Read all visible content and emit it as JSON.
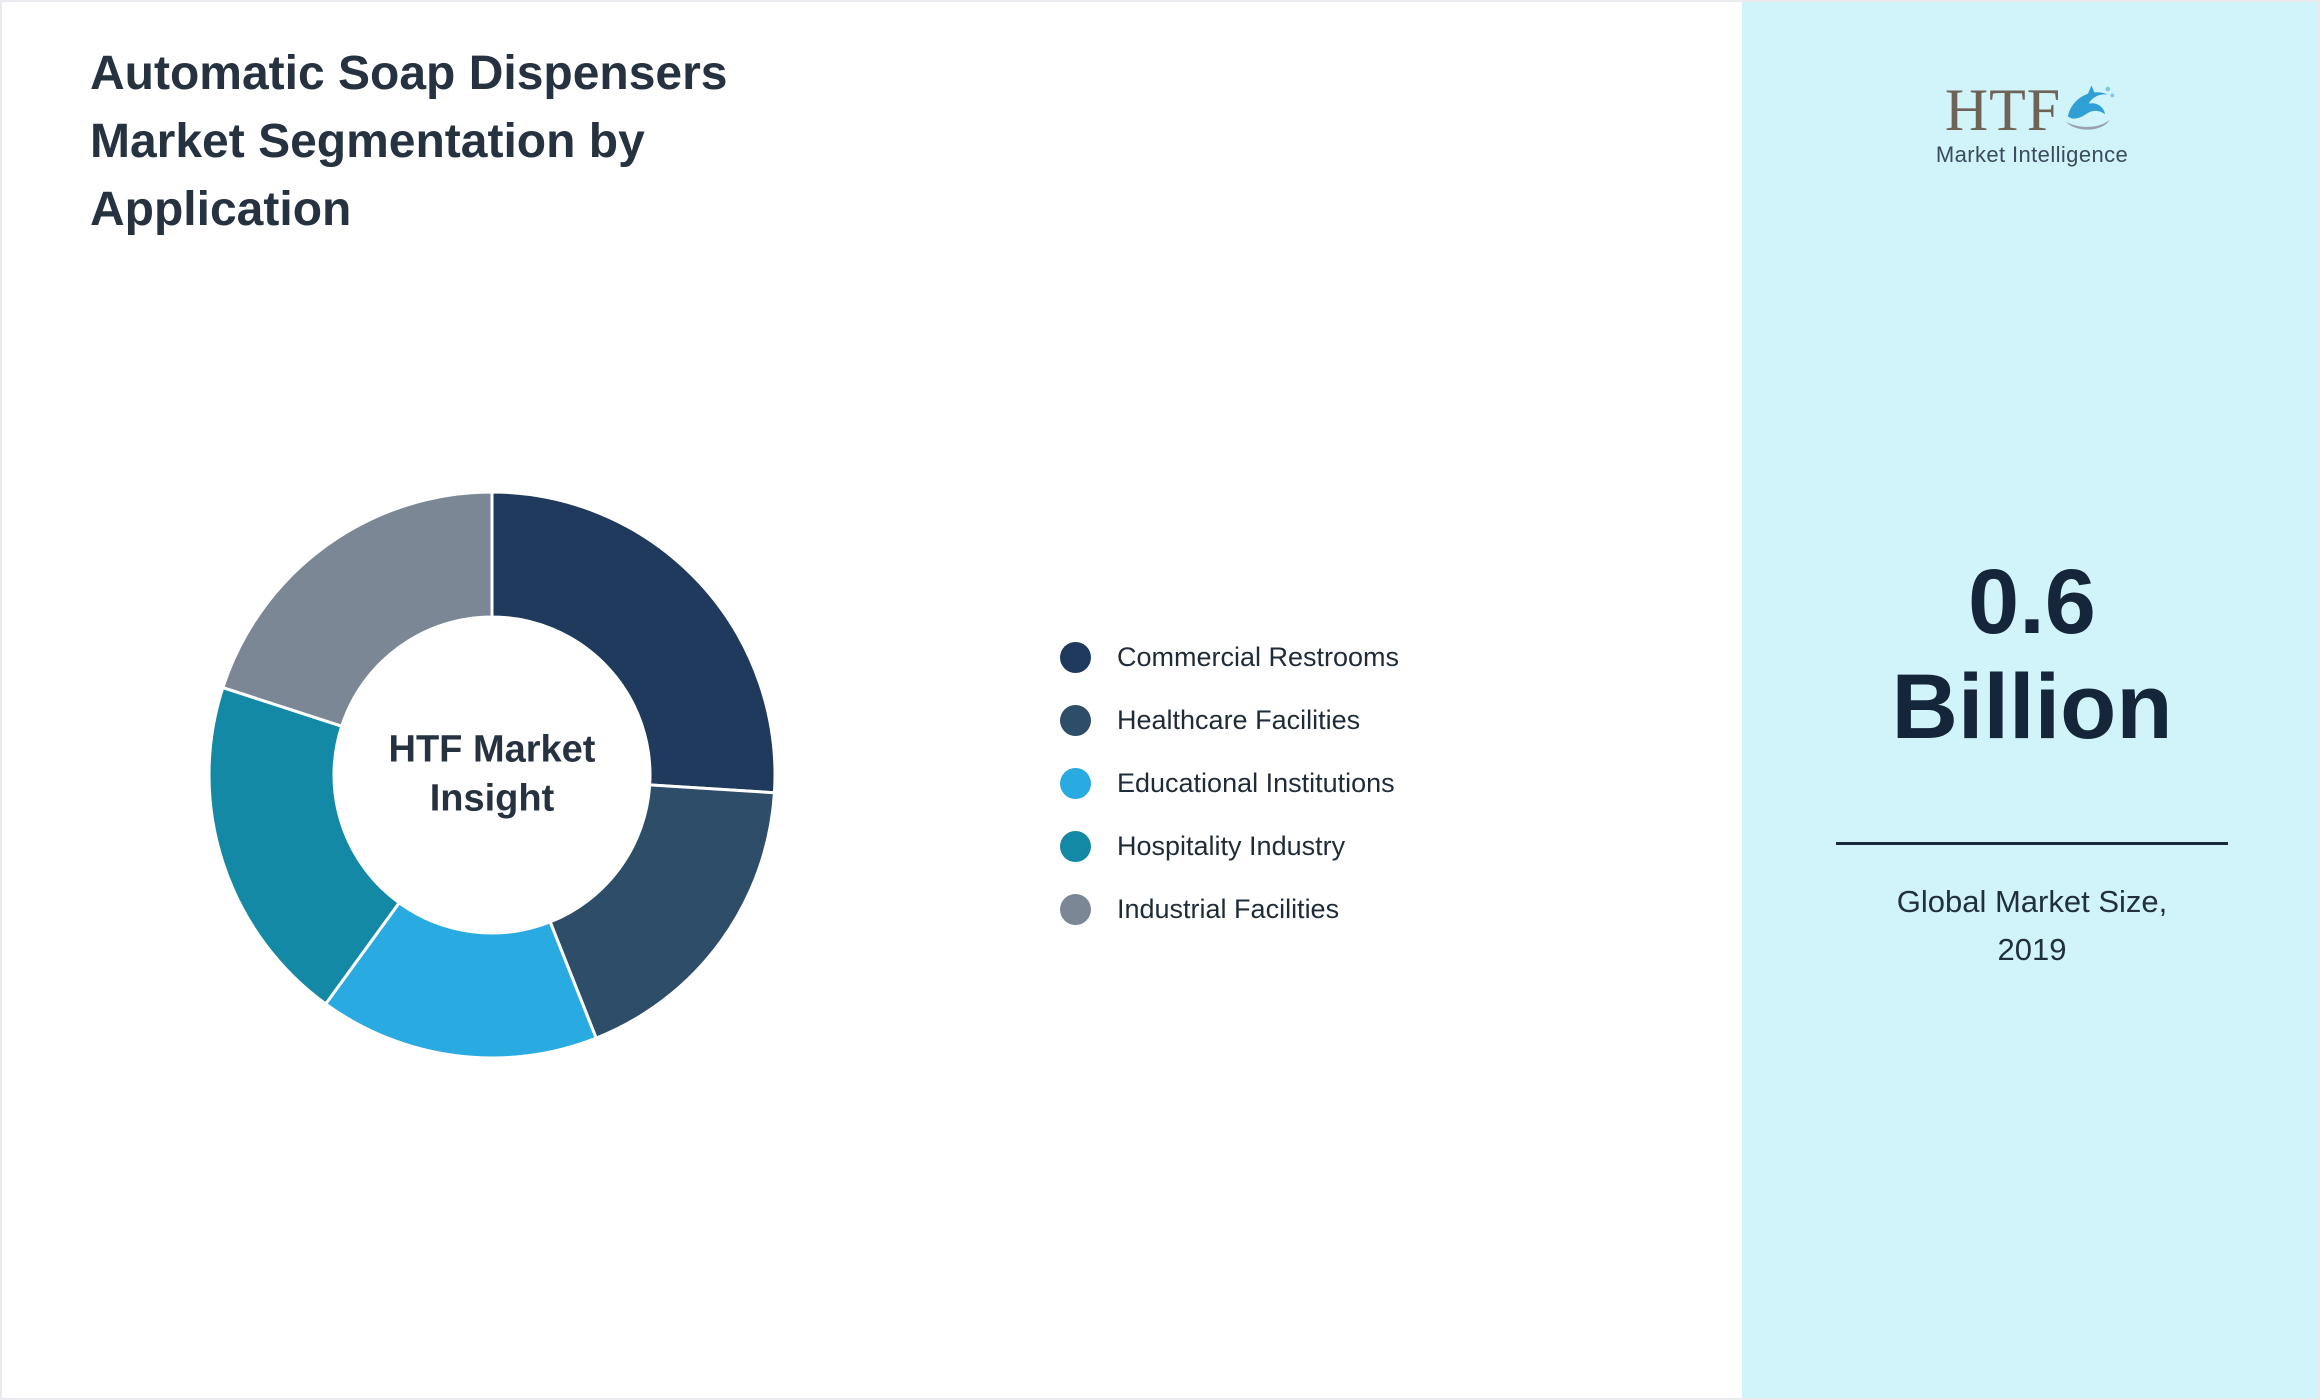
{
  "page": {
    "title": "Automatic Soap Dispensers Market Segmentation by Application"
  },
  "chart_data": {
    "type": "pie",
    "variant": "donut",
    "title": "Automatic Soap Dispensers Market Segmentation by Application",
    "center_label": "HTF Market Insight",
    "center_label_lines": [
      "HTF Market",
      "Insight"
    ],
    "categories": [
      "Commercial Restrooms",
      "Healthcare Facilities",
      "Educational Institutions",
      "Hospitality Industry",
      "Industrial Facilities"
    ],
    "values": [
      26,
      18,
      16,
      20,
      20
    ],
    "values_note": "percent share estimated from arc angles",
    "colors": [
      "#1f3a5c",
      "#2e4d69",
      "#29aae1",
      "#1389a5",
      "#7b8795"
    ],
    "legend_position": "right",
    "start_angle_deg": 0,
    "direction": "clockwise",
    "inner_radius_ratio": 0.56,
    "slice_separator_color": "#ffffff"
  },
  "sidebar": {
    "background": "#d1f3fa",
    "logo": {
      "text": "HTF",
      "subtext": "Market Intelligence"
    },
    "stat": {
      "line1": "0.6",
      "line2": "Billion"
    },
    "caption": {
      "line1": "Global Market Size,",
      "line2": "2019"
    }
  }
}
